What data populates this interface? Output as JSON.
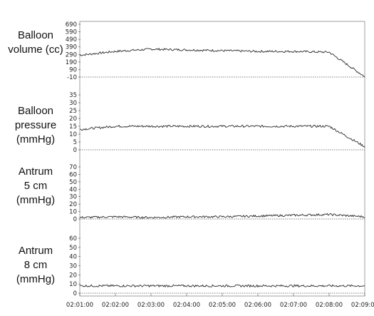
{
  "figure": {
    "x_ticks": [
      "02:01:00",
      "02:02:00",
      "02:03:00",
      "02:04:00",
      "02:05:00",
      "02:06:00",
      "02:07:00",
      "02:08:00",
      "02:09:00"
    ],
    "trace_color": "#2b2b2b",
    "baseline_color": "#555555"
  },
  "chart_data": [
    {
      "type": "line",
      "label_lines": [
        "Balloon",
        "volume (cc)"
      ],
      "ylim": [
        -10,
        690
      ],
      "yticks": [
        "690",
        "590",
        "490",
        "390",
        "290",
        "190",
        "90",
        "-10"
      ],
      "ytick_values": [
        690,
        590,
        490,
        390,
        290,
        190,
        90,
        -10
      ],
      "x": [
        "02:01:00",
        "02:02:00",
        "02:03:00",
        "02:04:00",
        "02:05:00",
        "02:06:00",
        "02:07:00",
        "02:08:00",
        "02:09:00"
      ],
      "values": [
        280,
        330,
        360,
        350,
        340,
        330,
        330,
        320,
        -5
      ]
    },
    {
      "type": "line",
      "label_lines": [
        "Balloon",
        "pressure",
        "(mmHg)"
      ],
      "ylim": [
        0,
        35
      ],
      "yticks": [
        "35",
        "30",
        "25",
        "20",
        "15",
        "10",
        "5",
        "0"
      ],
      "ytick_values": [
        35,
        30,
        25,
        20,
        15,
        10,
        5,
        0
      ],
      "x": [
        "02:01:00",
        "02:02:00",
        "02:03:00",
        "02:04:00",
        "02:05:00",
        "02:06:00",
        "02:07:00",
        "02:08:00",
        "02:09:00"
      ],
      "values": [
        13,
        15,
        15,
        15,
        15,
        15,
        15,
        15,
        2
      ]
    },
    {
      "type": "line",
      "label_lines": [
        "Antrum",
        "5 cm",
        "(mmHg)"
      ],
      "ylim": [
        0,
        70
      ],
      "yticks": [
        "70",
        "60",
        "50",
        "40",
        "30",
        "20",
        "10",
        "0"
      ],
      "ytick_values": [
        70,
        60,
        50,
        40,
        30,
        20,
        10,
        0
      ],
      "x": [
        "02:01:00",
        "02:02:00",
        "02:03:00",
        "02:04:00",
        "02:05:00",
        "02:06:00",
        "02:07:00",
        "02:08:00",
        "02:09:00"
      ],
      "values": [
        2,
        3,
        2,
        3,
        3,
        4,
        5,
        6,
        3
      ]
    },
    {
      "type": "line",
      "label_lines": [
        "Antrum",
        "8 cm",
        "(mmHg)"
      ],
      "ylim": [
        0,
        60
      ],
      "yticks": [
        "60",
        "50",
        "40",
        "30",
        "20",
        "10",
        "0"
      ],
      "ytick_values": [
        60,
        50,
        40,
        30,
        20,
        10,
        0
      ],
      "x": [
        "02:01:00",
        "02:02:00",
        "02:03:00",
        "02:04:00",
        "02:05:00",
        "02:06:00",
        "02:07:00",
        "02:08:00",
        "02:09:00"
      ],
      "values": [
        8,
        8,
        8,
        8,
        8,
        8,
        8,
        8,
        8
      ]
    }
  ]
}
